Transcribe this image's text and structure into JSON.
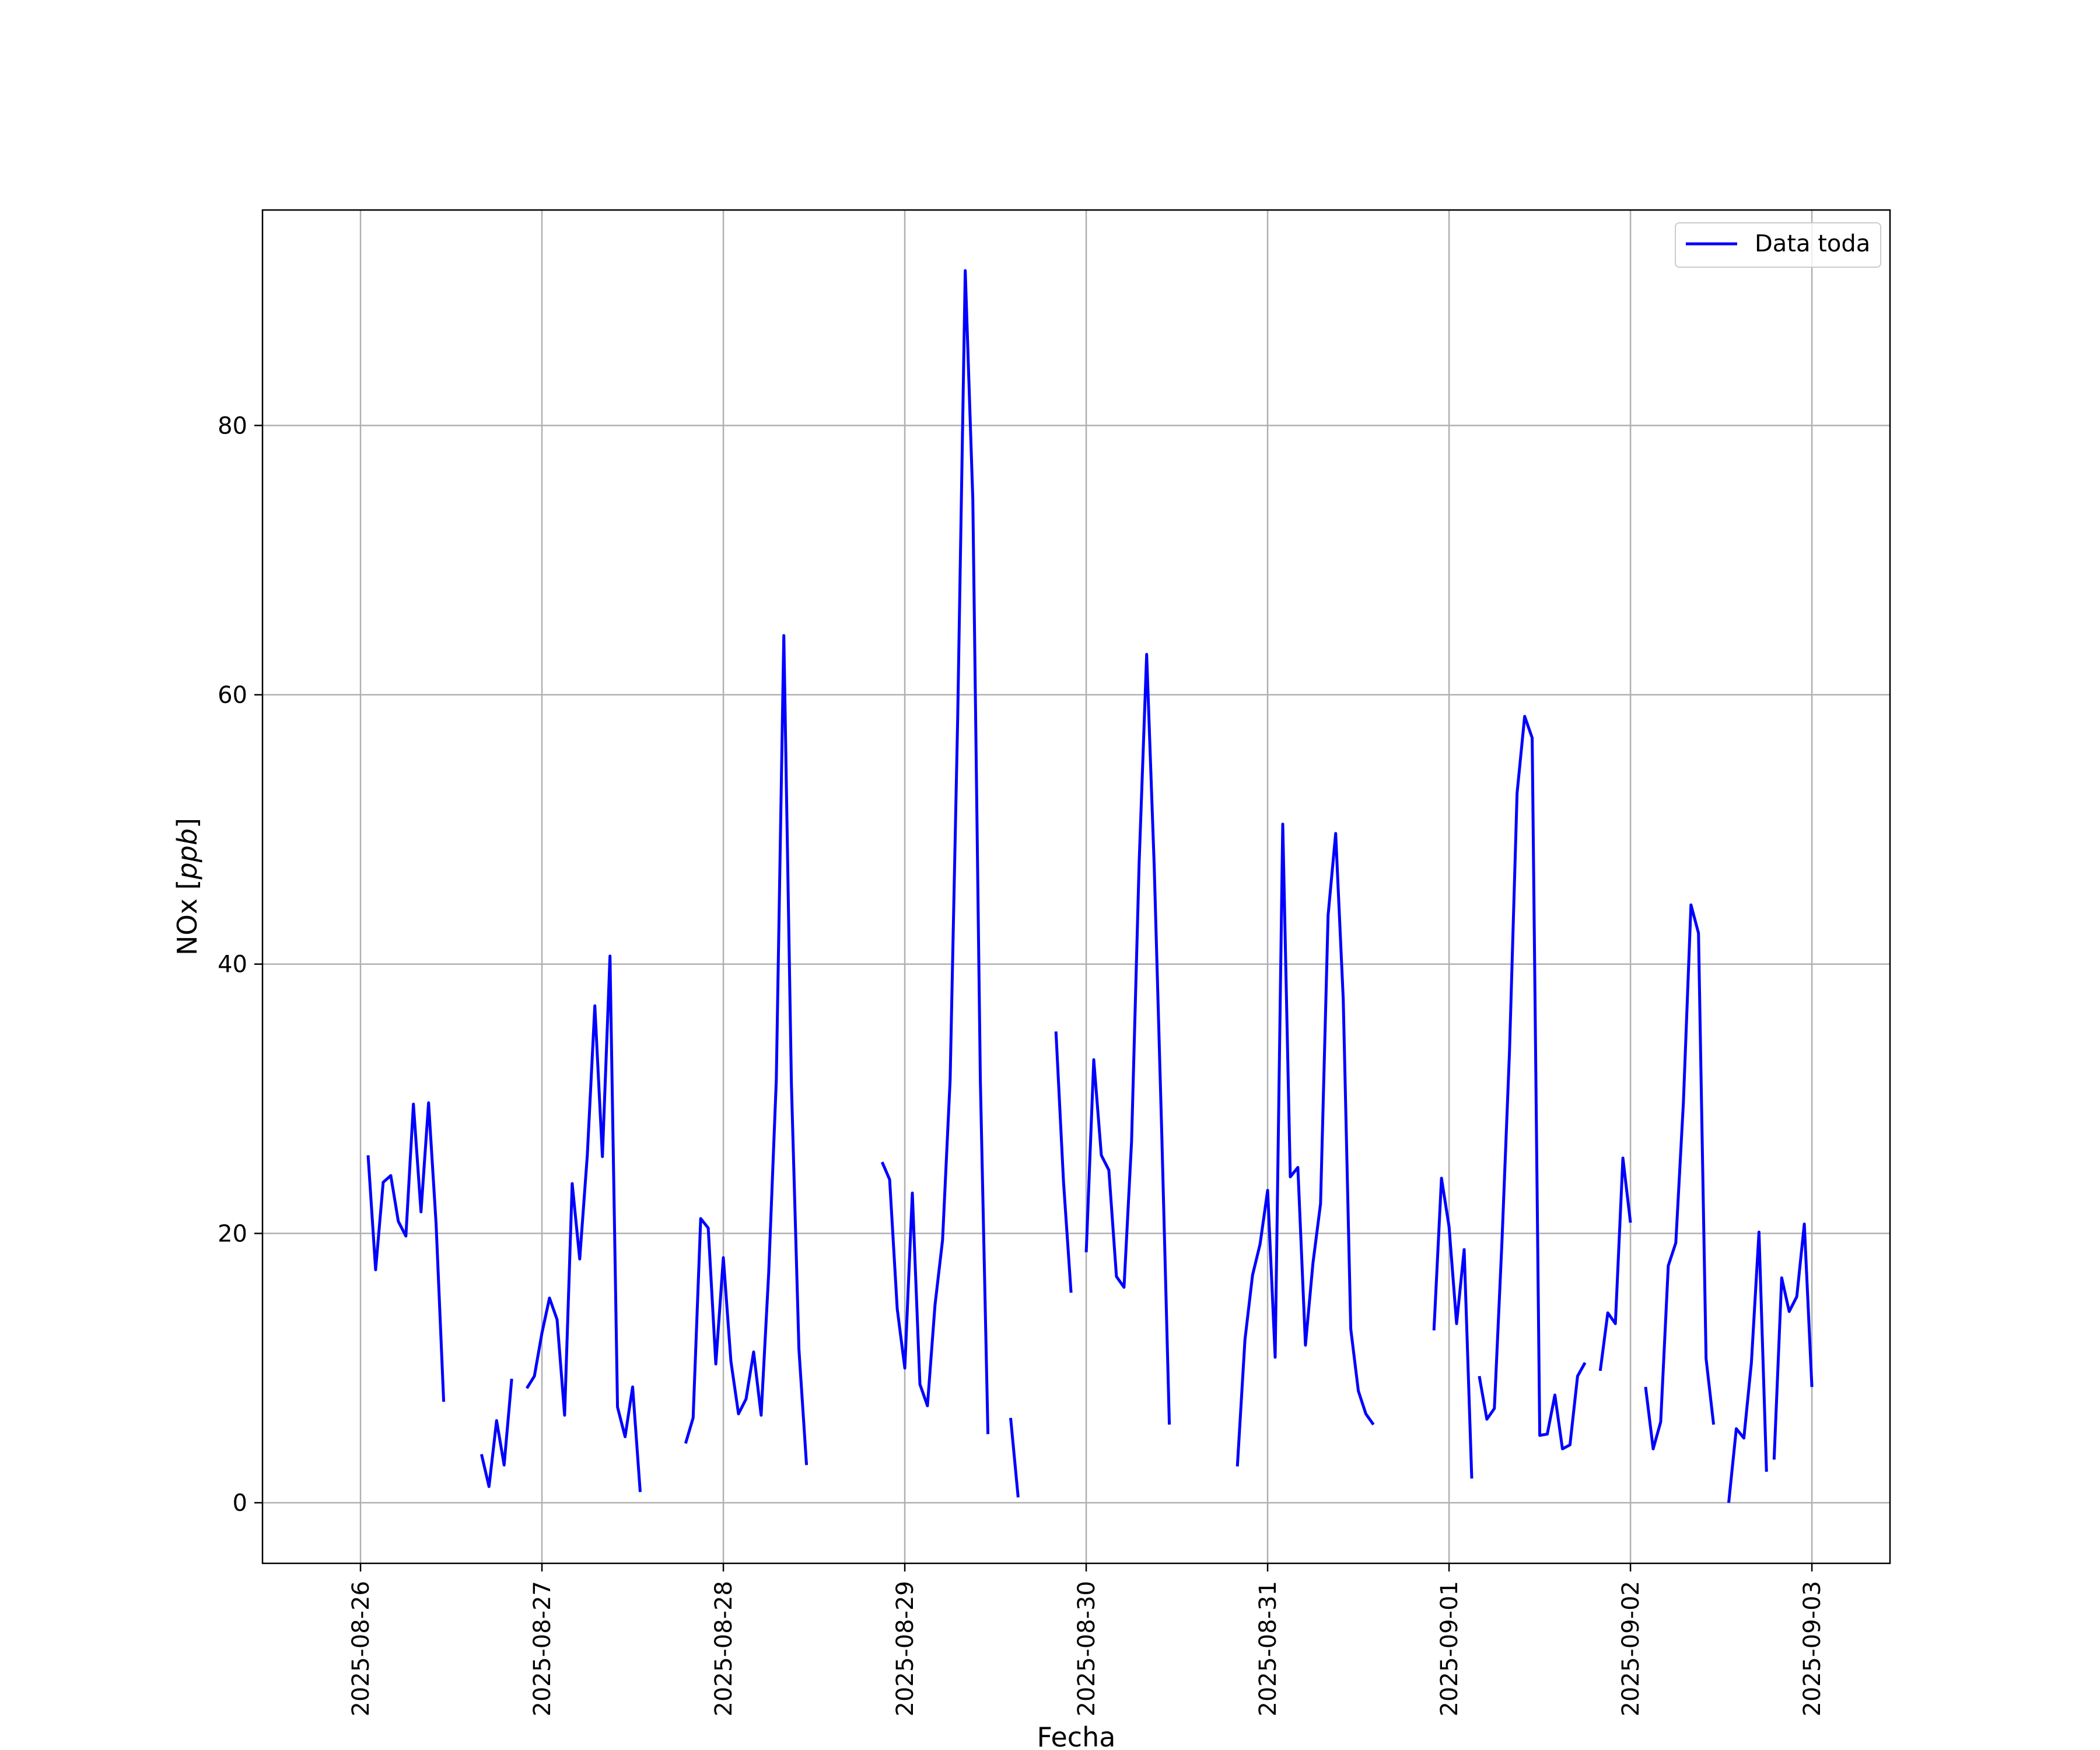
{
  "chart_data": {
    "type": "line",
    "title": "",
    "xlabel": "Fecha",
    "ylabel": "NOx [ppb]",
    "ylabel_parts": {
      "text": "NOx [",
      "unit": "ppb",
      "close": "]"
    },
    "xlim": [
      "2025-08-25T11:02",
      "2025-09-03T10:20"
    ],
    "ylim": [
      -4.5,
      96
    ],
    "grid": true,
    "legend_position": "top-right",
    "x_ticks": [
      "2025-08-26",
      "2025-08-27",
      "2025-08-28",
      "2025-08-29",
      "2025-08-30",
      "2025-08-31",
      "2025-09-01",
      "2025-09-02",
      "2025-09-03"
    ],
    "y_ticks": [
      0,
      20,
      40,
      60,
      80
    ],
    "color": "#0000ff",
    "series": [
      {
        "name": "Data toda",
        "segments": [
          [
            [
              "2025-08-26T01:00",
              25.8
            ],
            [
              "2025-08-26T02:00",
              17.3
            ],
            [
              "2025-08-26T03:00",
              23.8
            ],
            [
              "2025-08-26T04:00",
              24.3
            ],
            [
              "2025-08-26T05:00",
              20.9
            ],
            [
              "2025-08-26T06:00",
              19.8
            ],
            [
              "2025-08-26T07:00",
              29.6
            ],
            [
              "2025-08-26T08:00",
              21.6
            ],
            [
              "2025-08-26T09:00",
              29.7
            ],
            [
              "2025-08-26T10:00",
              20.7
            ],
            [
              "2025-08-26T11:00",
              7.5
            ]
          ],
          [
            [
              "2025-08-26T16:00",
              3.6
            ],
            [
              "2025-08-26T17:00",
              1.2
            ],
            [
              "2025-08-26T18:00",
              6.1
            ],
            [
              "2025-08-26T19:00",
              2.8
            ],
            [
              "2025-08-26T20:00",
              9.2
            ]
          ],
          [
            [
              "2025-08-26T22:00",
              8.5
            ],
            [
              "2025-08-26T23:00",
              9.4
            ],
            [
              "2025-08-27T00:00",
              12.6
            ],
            [
              "2025-08-27T01:00",
              15.2
            ],
            [
              "2025-08-27T02:00",
              13.6
            ],
            [
              "2025-08-27T03:00",
              6.5
            ],
            [
              "2025-08-27T04:00",
              23.7
            ],
            [
              "2025-08-27T05:00",
              18.1
            ],
            [
              "2025-08-27T06:00",
              25.8
            ],
            [
              "2025-08-27T07:00",
              36.9
            ],
            [
              "2025-08-27T08:00",
              25.7
            ],
            [
              "2025-08-27T09:00",
              40.6
            ],
            [
              "2025-08-27T10:00",
              7.1
            ],
            [
              "2025-08-27T11:00",
              4.9
            ],
            [
              "2025-08-27T12:00",
              8.6
            ],
            [
              "2025-08-27T13:00",
              0.8
            ]
          ],
          [
            [
              "2025-08-27T19:00",
              4.4
            ],
            [
              "2025-08-27T20:00",
              6.3
            ],
            [
              "2025-08-27T21:00",
              21.1
            ],
            [
              "2025-08-27T22:00",
              20.4
            ],
            [
              "2025-08-27T23:00",
              10.3
            ],
            [
              "2025-08-28T00:00",
              18.2
            ],
            [
              "2025-08-28T01:00",
              10.5
            ],
            [
              "2025-08-28T02:00",
              6.6
            ],
            [
              "2025-08-28T03:00",
              7.7
            ],
            [
              "2025-08-28T04:00",
              11.2
            ],
            [
              "2025-08-28T05:00",
              6.5
            ],
            [
              "2025-08-28T06:00",
              17.1
            ],
            [
              "2025-08-28T07:00",
              31.4
            ],
            [
              "2025-08-28T08:00",
              64.4
            ],
            [
              "2025-08-28T09:00",
              31.1
            ],
            [
              "2025-08-28T10:00",
              11.4
            ],
            [
              "2025-08-28T11:00",
              2.8
            ]
          ],
          [
            [
              "2025-08-28T21:00",
              25.3
            ],
            [
              "2025-08-28T22:00",
              24.0
            ],
            [
              "2025-08-28T23:00",
              14.4
            ],
            [
              "2025-08-29T00:00",
              10.0
            ],
            [
              "2025-08-29T01:00",
              23.0
            ],
            [
              "2025-08-29T02:00",
              8.8
            ],
            [
              "2025-08-29T03:00",
              7.2
            ],
            [
              "2025-08-29T04:00",
              14.7
            ],
            [
              "2025-08-29T05:00",
              19.5
            ],
            [
              "2025-08-29T06:00",
              31.4
            ],
            [
              "2025-08-29T07:00",
              58.4
            ],
            [
              "2025-08-29T08:00",
              91.5
            ],
            [
              "2025-08-29T09:00",
              74.5
            ],
            [
              "2025-08-29T10:00",
              31.4
            ],
            [
              "2025-08-29T11:00",
              5.1
            ]
          ],
          [
            [
              "2025-08-29T14:00",
              6.3
            ],
            [
              "2025-08-29T15:00",
              0.4
            ]
          ],
          [
            [
              "2025-08-29T20:00",
              35.0
            ],
            [
              "2025-08-29T21:00",
              23.8
            ],
            [
              "2025-08-29T22:00",
              15.6
            ]
          ],
          [
            [
              "2025-08-30T00:00",
              18.6
            ],
            [
              "2025-08-30T01:00",
              32.9
            ],
            [
              "2025-08-30T02:00",
              25.8
            ],
            [
              "2025-08-30T03:00",
              24.7
            ],
            [
              "2025-08-30T04:00",
              16.8
            ],
            [
              "2025-08-30T05:00",
              16.0
            ],
            [
              "2025-08-30T06:00",
              26.8
            ],
            [
              "2025-08-30T07:00",
              47.5
            ],
            [
              "2025-08-30T08:00",
              63.0
            ],
            [
              "2025-08-30T09:00",
              47.2
            ],
            [
              "2025-08-30T10:00",
              27.4
            ],
            [
              "2025-08-30T11:00",
              5.8
            ]
          ],
          [
            [
              "2025-08-30T20:00",
              2.7
            ],
            [
              "2025-08-30T21:00",
              12.1
            ],
            [
              "2025-08-30T22:00",
              16.9
            ],
            [
              "2025-08-30T23:00",
              19.2
            ],
            [
              "2025-08-31T00:00",
              23.2
            ],
            [
              "2025-08-31T01:00",
              10.8
            ],
            [
              "2025-08-31T02:00",
              50.4
            ],
            [
              "2025-08-31T03:00",
              24.2
            ],
            [
              "2025-08-31T04:00",
              24.9
            ],
            [
              "2025-08-31T05:00",
              11.7
            ],
            [
              "2025-08-31T06:00",
              17.8
            ],
            [
              "2025-08-31T07:00",
              22.2
            ],
            [
              "2025-08-31T08:00",
              43.6
            ],
            [
              "2025-08-31T09:00",
              49.7
            ],
            [
              "2025-08-31T10:00",
              37.4
            ],
            [
              "2025-08-31T11:00",
              12.9
            ],
            [
              "2025-08-31T12:00",
              8.3
            ],
            [
              "2025-08-31T13:00",
              6.6
            ],
            [
              "2025-08-31T14:00",
              5.8
            ]
          ],
          [
            [
              "2025-08-31T22:00",
              12.8
            ],
            [
              "2025-08-31T23:00",
              24.1
            ],
            [
              "2025-09-01T00:00",
              20.5
            ],
            [
              "2025-09-01T01:00",
              13.3
            ],
            [
              "2025-09-01T02:00",
              18.8
            ],
            [
              "2025-09-01T03:00",
              1.8
            ]
          ],
          [
            [
              "2025-09-01T04:00",
              9.4
            ],
            [
              "2025-09-01T05:00",
              6.2
            ],
            [
              "2025-09-01T06:00",
              7.0
            ],
            [
              "2025-09-01T07:00",
              19.4
            ],
            [
              "2025-09-01T08:00",
              33.5
            ],
            [
              "2025-09-01T09:00",
              52.7
            ],
            [
              "2025-09-01T10:00",
              58.4
            ],
            [
              "2025-09-01T11:00",
              56.8
            ],
            [
              "2025-09-01T12:00",
              5.0
            ],
            [
              "2025-09-01T13:00",
              5.1
            ],
            [
              "2025-09-01T14:00",
              8.0
            ],
            [
              "2025-09-01T15:00",
              4.0
            ],
            [
              "2025-09-01T16:00",
              4.3
            ],
            [
              "2025-09-01T17:00",
              9.4
            ],
            [
              "2025-09-01T18:00",
              10.4
            ]
          ],
          [
            [
              "2025-09-01T20:00",
              9.8
            ],
            [
              "2025-09-01T21:00",
              14.1
            ],
            [
              "2025-09-01T22:00",
              13.3
            ],
            [
              "2025-09-01T23:00",
              25.6
            ],
            [
              "2025-09-02T00:00",
              20.8
            ]
          ],
          [
            [
              "2025-09-02T02:00",
              8.6
            ],
            [
              "2025-09-02T03:00",
              4.0
            ],
            [
              "2025-09-02T04:00",
              6.0
            ],
            [
              "2025-09-02T05:00",
              17.6
            ],
            [
              "2025-09-02T06:00",
              19.3
            ],
            [
              "2025-09-02T07:00",
              29.7
            ],
            [
              "2025-09-02T08:00",
              44.4
            ],
            [
              "2025-09-02T09:00",
              42.3
            ],
            [
              "2025-09-02T10:00",
              10.7
            ],
            [
              "2025-09-02T11:00",
              5.8
            ]
          ],
          [
            [
              "2025-09-02T13:00",
              0.0
            ],
            [
              "2025-09-02T14:00",
              5.5
            ],
            [
              "2025-09-02T15:00",
              4.8
            ],
            [
              "2025-09-02T16:00",
              10.4
            ],
            [
              "2025-09-02T17:00",
              20.1
            ],
            [
              "2025-09-02T18:00",
              2.3
            ]
          ],
          [
            [
              "2025-09-02T19:00",
              3.2
            ],
            [
              "2025-09-02T20:00",
              16.7
            ],
            [
              "2025-09-02T21:00",
              14.2
            ],
            [
              "2025-09-02T22:00",
              15.3
            ],
            [
              "2025-09-02T23:00",
              20.7
            ],
            [
              "2025-09-03T00:00",
              8.6
            ]
          ]
        ]
      }
    ]
  }
}
